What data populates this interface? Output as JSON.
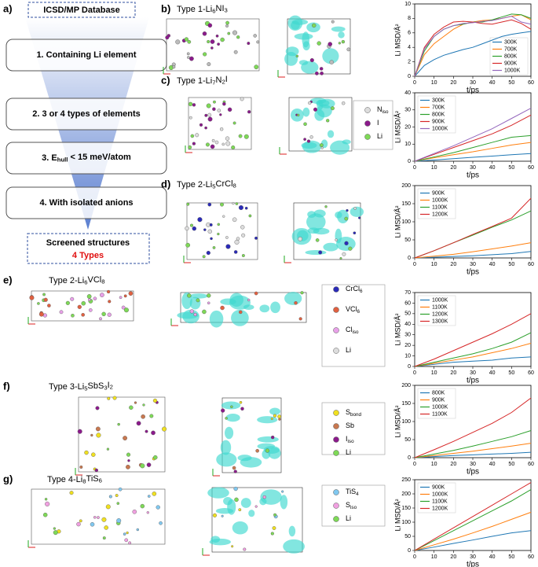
{
  "figure": {
    "funnel": {
      "label": "a)",
      "top": "ICSD/MP Database",
      "steps": [
        "1. Containing Li element",
        "2. 3 or 4 types of elements",
        {
          "pre": "3. E",
          "sub": "hull",
          "post": " < 15 meV/atom"
        },
        "4. With isolated anions"
      ],
      "result": "Screened structures",
      "result_types": "4 Types"
    },
    "panels": [
      {
        "label": "b)",
        "title": "Type 1-Li6NI3",
        "legend": []
      },
      {
        "label": "c)",
        "title": "Type 1-Li7N2I",
        "legend": [
          {
            "text": "N",
            "sub": "iso",
            "color": "#dddddd"
          },
          {
            "text": "I",
            "color": "#8b1a8b"
          },
          {
            "text": "Li",
            "color": "#7ed957"
          }
        ]
      },
      {
        "label": "d)",
        "title": "Type 2-Li5CrCl8",
        "legend": []
      },
      {
        "label": "e)",
        "title": "Type 2-Li6VCl8",
        "legend": [
          {
            "text": "CrCl6",
            "color": "#2a2ab8"
          },
          {
            "text": "VCl6",
            "color": "#e06040"
          },
          {
            "text": "Cl",
            "sub": "iso",
            "color": "#e8a0e8"
          },
          {
            "text": "Li",
            "color": "#dddddd"
          }
        ]
      },
      {
        "label": "f)",
        "title": "Type 3-Li5SbS3I2",
        "legend": [
          {
            "text": "S",
            "sub": "bond",
            "color": "#f0e020"
          },
          {
            "text": "Sb",
            "color": "#c87850"
          },
          {
            "text": "I",
            "sub": "iso",
            "color": "#8b1a8b"
          },
          {
            "text": "Li",
            "color": "#7ed957"
          }
        ]
      },
      {
        "label": "g)",
        "title": "Type 4-Li8TiS6",
        "legend": [
          {
            "text": "TiS4",
            "color": "#80c8f0"
          },
          {
            "text": "S",
            "sub": "iso",
            "color": "#f0a0e0"
          },
          {
            "text": "Li",
            "color": "#7ed957"
          }
        ]
      }
    ]
  },
  "chart_data": [
    {
      "type": "line",
      "xlabel": "t/ps",
      "ylabel": "Li MSD/Å²",
      "legend": "lower right",
      "xlim": [
        0,
        60
      ],
      "ylim": [
        0,
        10
      ],
      "xticks": [
        0,
        10,
        20,
        30,
        40,
        50,
        60
      ],
      "yticks": [
        0,
        2,
        4,
        6,
        8,
        10
      ],
      "x": [
        0,
        5,
        10,
        15,
        20,
        25,
        30,
        35,
        40,
        45,
        50,
        55,
        60
      ],
      "series": [
        {
          "name": "300K",
          "color": "#1f77b4",
          "values": [
            0,
            1.5,
            2.3,
            2.9,
            3.3,
            3.7,
            4.0,
            4.5,
            5.0,
            5.5,
            5.8,
            6.0,
            6.2
          ]
        },
        {
          "name": "700K",
          "color": "#ff7f0e",
          "values": [
            0,
            3,
            4.5,
            5.5,
            6.5,
            7.2,
            7.5,
            7.7,
            7.8,
            8.0,
            8.3,
            8.5,
            7.8
          ]
        },
        {
          "name": "800K",
          "color": "#2ca02c",
          "values": [
            0,
            3.5,
            5.5,
            6.5,
            7.0,
            7.2,
            7.5,
            7.5,
            7.8,
            8.2,
            8.6,
            8.5,
            8.0
          ]
        },
        {
          "name": "900K",
          "color": "#d62728",
          "values": [
            0,
            4.0,
            5.8,
            6.8,
            7.5,
            7.6,
            7.5,
            7.3,
            7.2,
            7.5,
            7.8,
            7.3,
            6.5
          ]
        },
        {
          "name": "1000K",
          "color": "#9467bd",
          "values": [
            0,
            3.8,
            5.5,
            6.5,
            7.0,
            7.3,
            7.4,
            7.6,
            7.7,
            8.0,
            8.3,
            7.5,
            7.2
          ]
        }
      ]
    },
    {
      "type": "line",
      "xlabel": "t/ps",
      "ylabel": "Li MSD/Å²",
      "legend": "upper left",
      "xlim": [
        0,
        60
      ],
      "ylim": [
        0,
        40
      ],
      "xticks": [
        0,
        10,
        20,
        30,
        40,
        50,
        60
      ],
      "yticks": [
        0,
        10,
        20,
        30,
        40
      ],
      "x": [
        0,
        10,
        20,
        30,
        40,
        50,
        60
      ],
      "series": [
        {
          "name": "300K",
          "color": "#1f77b4",
          "values": [
            0,
            0.7,
            1.5,
            2.3,
            3,
            3.8,
            4.5
          ]
        },
        {
          "name": "700K",
          "color": "#ff7f0e",
          "values": [
            0,
            2,
            3.8,
            5.5,
            7.5,
            9.5,
            11
          ]
        },
        {
          "name": "800K",
          "color": "#2ca02c",
          "values": [
            0,
            2.5,
            5,
            8,
            11,
            14,
            15
          ]
        },
        {
          "name": "900K",
          "color": "#d62728",
          "values": [
            0,
            4,
            8,
            12,
            16,
            21,
            27
          ]
        },
        {
          "name": "1000K",
          "color": "#9467bd",
          "values": [
            0,
            4.5,
            9,
            14,
            19,
            25,
            31
          ]
        }
      ]
    },
    {
      "type": "line",
      "xlabel": "t/ps",
      "ylabel": "Li MSD/Å²",
      "legend": "upper left",
      "xlim": [
        0,
        60
      ],
      "ylim": [
        0,
        200
      ],
      "xticks": [
        0,
        10,
        20,
        30,
        40,
        50,
        60
      ],
      "yticks": [
        0,
        50,
        100,
        150,
        200
      ],
      "x": [
        0,
        10,
        20,
        30,
        40,
        50,
        60
      ],
      "series": [
        {
          "name": "900K",
          "color": "#1f77b4",
          "values": [
            0,
            2,
            4,
            6,
            9,
            12,
            18
          ]
        },
        {
          "name": "1000K",
          "color": "#ff7f0e",
          "values": [
            0,
            5,
            10,
            17,
            25,
            33,
            42
          ]
        },
        {
          "name": "1100K",
          "color": "#2ca02c",
          "values": [
            0,
            20,
            42,
            63,
            85,
            105,
            130
          ]
        },
        {
          "name": "1200K",
          "color": "#d62728",
          "values": [
            0,
            20,
            42,
            65,
            87,
            110,
            165
          ]
        }
      ]
    },
    {
      "type": "line",
      "xlabel": "t/ps",
      "ylabel": "Li MSD/Å²",
      "legend": "upper left",
      "xlim": [
        0,
        60
      ],
      "ylim": [
        0,
        70
      ],
      "xticks": [
        0,
        10,
        20,
        30,
        40,
        50,
        60
      ],
      "yticks": [
        0,
        10,
        20,
        30,
        40,
        50,
        60,
        70
      ],
      "x": [
        0,
        10,
        20,
        30,
        40,
        50,
        60
      ],
      "series": [
        {
          "name": "1000K",
          "color": "#1f77b4",
          "values": [
            0,
            2,
            4,
            5,
            6,
            8,
            9
          ]
        },
        {
          "name": "1100K",
          "color": "#ff7f0e",
          "values": [
            0,
            3,
            6,
            9,
            13,
            17,
            22
          ]
        },
        {
          "name": "1200K",
          "color": "#2ca02c",
          "values": [
            0,
            4,
            8,
            12,
            17,
            23,
            32
          ]
        },
        {
          "name": "1300K",
          "color": "#d62728",
          "values": [
            0,
            7,
            15,
            23,
            31,
            40,
            50
          ]
        }
      ]
    },
    {
      "type": "line",
      "xlabel": "t/ps",
      "ylabel": "Li MSD/Å²",
      "legend": "upper left",
      "xlim": [
        0,
        60
      ],
      "ylim": [
        0,
        200
      ],
      "xticks": [
        0,
        10,
        20,
        30,
        40,
        50,
        60
      ],
      "yticks": [
        0,
        50,
        100,
        150,
        200
      ],
      "x": [
        0,
        10,
        20,
        30,
        40,
        50,
        60
      ],
      "series": [
        {
          "name": "800K",
          "color": "#1f77b4",
          "values": [
            0,
            3,
            6,
            8,
            10,
            12,
            15
          ]
        },
        {
          "name": "900K",
          "color": "#ff7f0e",
          "values": [
            0,
            6,
            12,
            18,
            25,
            32,
            40
          ]
        },
        {
          "name": "1000K",
          "color": "#2ca02c",
          "values": [
            0,
            10,
            20,
            32,
            45,
            58,
            75
          ]
        },
        {
          "name": "1100K",
          "color": "#d62728",
          "values": [
            0,
            22,
            45,
            70,
            95,
            125,
            165
          ]
        }
      ]
    },
    {
      "type": "line",
      "xlabel": "t/ps",
      "ylabel": "Li MSD/Å²",
      "legend": "upper left",
      "xlim": [
        0,
        60
      ],
      "ylim": [
        0,
        250
      ],
      "xticks": [
        0,
        10,
        20,
        30,
        40,
        50,
        60
      ],
      "yticks": [
        0,
        50,
        100,
        150,
        200,
        250
      ],
      "x": [
        0,
        10,
        20,
        30,
        40,
        50,
        60
      ],
      "series": [
        {
          "name": "900K",
          "color": "#1f77b4",
          "values": [
            0,
            12,
            25,
            37,
            50,
            62,
            70
          ]
        },
        {
          "name": "1000K",
          "color": "#ff7f0e",
          "values": [
            0,
            20,
            40,
            62,
            85,
            110,
            135
          ]
        },
        {
          "name": "1100K",
          "color": "#2ca02c",
          "values": [
            0,
            35,
            70,
            105,
            140,
            175,
            215
          ]
        },
        {
          "name": "1200K",
          "color": "#d62728",
          "values": [
            0,
            40,
            80,
            120,
            160,
            200,
            240
          ]
        }
      ]
    }
  ]
}
